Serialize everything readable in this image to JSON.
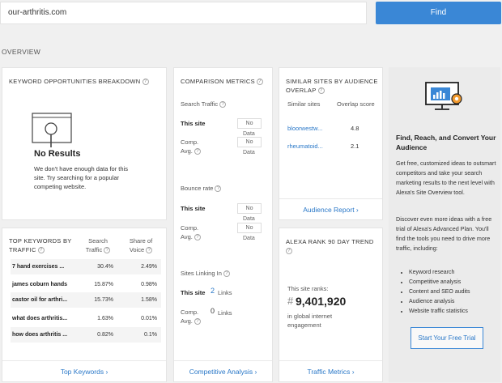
{
  "search": {
    "value": "our-arthritis.com",
    "button": "Find"
  },
  "overview_label": "OVERVIEW",
  "keyword_opportunities": {
    "title": "KEYWORD OPPORTUNITIES BREAKDOWN",
    "no_results": "No Results",
    "message": "We don't have enough data for this site. Try searching for a popular competing website."
  },
  "top_keywords": {
    "title_line1": "TOP KEYWORDS BY",
    "title_line2": "TRAFFIC",
    "col_traffic_line1": "Search",
    "col_traffic_line2": "Traffic",
    "col_voice_line1": "Share of",
    "col_voice_line2": "Voice",
    "rows": [
      {
        "keyword": "7 hand exercises ...",
        "traffic": "30.4%",
        "voice": "2.49%"
      },
      {
        "keyword": "james coburn hands",
        "traffic": "15.87%",
        "voice": "0.98%"
      },
      {
        "keyword": "castor oil for arthri...",
        "traffic": "15.73%",
        "voice": "1.58%"
      },
      {
        "keyword": "what does arthritis...",
        "traffic": "1.63%",
        "voice": "0.01%"
      },
      {
        "keyword": "how does arthritis ...",
        "traffic": "0.82%",
        "voice": "0.1%"
      }
    ],
    "link": "Top Keywords ›"
  },
  "comparison": {
    "title": "COMPARISON METRICS",
    "search_traffic": "Search Traffic",
    "this_site": "This site",
    "comp_avg_line1": "Comp.",
    "comp_avg_line2": "Avg.",
    "no": "No",
    "data": "Data",
    "bounce_rate": "Bounce rate",
    "sites_linking_in": "Sites Linking In",
    "this_site_links_value": "2",
    "comp_links_value": "0",
    "links": "Links",
    "link": "Competitive Analysis ›"
  },
  "similar_sites": {
    "title_line1": "SIMILAR SITES BY AUDIENCE",
    "title_line2": "OVERLAP",
    "col_sites": "Similar sites",
    "col_score": "Overlap score",
    "rows": [
      {
        "site": "bloorwestw...",
        "score": "4.8"
      },
      {
        "site": "rheumatoid...",
        "score": "2.1"
      }
    ],
    "link": "Audience Report ›"
  },
  "alexa_rank": {
    "title": "ALEXA RANK 90 DAY TREND",
    "this_site_ranks": "This site ranks:",
    "hash": "#",
    "rank": "9,401,920",
    "sub_line1": "in global internet",
    "sub_line2": "engagement",
    "link": "Traffic Metrics ›"
  },
  "promo": {
    "title": "Find, Reach, and Convert Your Audience",
    "para1": "Get free, customized ideas to outsmart competitors and take your search marketing results to the next level with Alexa's Site Overview tool.",
    "para2": "Discover even more ideas with a free trial of Alexa's Advanced Plan. You'll find the tools you need to drive more traffic, including:",
    "features": [
      "Keyword research",
      "Competitive analysis",
      "Content and SEO audits",
      "Audience analysis",
      "Website traffic statistics"
    ],
    "button": "Start Your Free Trial"
  },
  "colors": {
    "accent": "#3a87d6",
    "link": "#2a78c8",
    "background": "#f0f0f0",
    "card": "#ffffff"
  }
}
